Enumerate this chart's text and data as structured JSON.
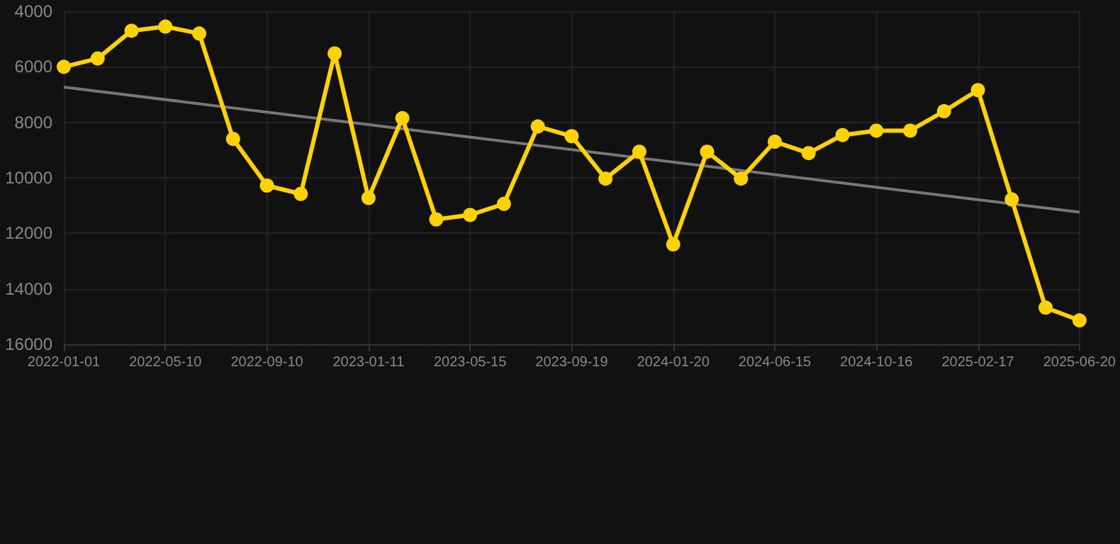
{
  "chart_data": {
    "type": "line",
    "categories": [
      "2022-01-01",
      null,
      null,
      "2022-05-10",
      null,
      null,
      "2022-09-10",
      null,
      null,
      "2023-01-11",
      null,
      null,
      "2023-05-15",
      null,
      null,
      "2023-09-19",
      null,
      null,
      "2024-01-20",
      null,
      null,
      "2024-06-15",
      null,
      null,
      "2024-10-16",
      null,
      null,
      "2025-02-17",
      null,
      null,
      "2025-06-20"
    ],
    "series": [
      {
        "color": "#ffd200",
        "marker": "circle",
        "values": [
          6000,
          5700,
          4700,
          4550,
          4800,
          8600,
          10280,
          10580,
          5520,
          10730,
          7850,
          11500,
          11340,
          10940,
          8150,
          8500,
          10030,
          9060,
          12400,
          9060,
          10030,
          8700,
          9110,
          8460,
          8300,
          8300,
          7600,
          6840,
          10780,
          14680,
          15140
        ]
      },
      {
        "color": "#777777",
        "marker": "none",
        "values": [
          6730,
          null,
          null,
          null,
          null,
          null,
          null,
          null,
          null,
          null,
          null,
          null,
          null,
          null,
          null,
          null,
          null,
          null,
          null,
          null,
          null,
          null,
          null,
          null,
          null,
          null,
          null,
          null,
          null,
          null,
          11240
        ]
      }
    ],
    "ylim": [
      16000,
      4000
    ],
    "yticks": [
      4000,
      6000,
      8000,
      10000,
      12000,
      14000,
      16000
    ],
    "grid": true
  }
}
